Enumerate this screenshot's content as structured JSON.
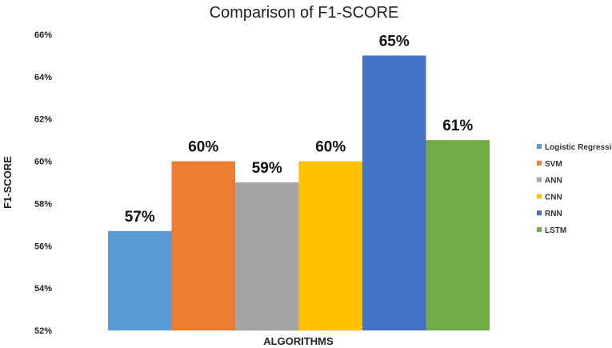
{
  "chart_data": {
    "type": "bar",
    "title": "Comparison of F1-SCORE",
    "xlabel": "ALGORITHMS",
    "ylabel": "F1-SCORE",
    "ylim": [
      52,
      66
    ],
    "yticks": [
      "52%",
      "54%",
      "56%",
      "58%",
      "60%",
      "62%",
      "64%",
      "66%"
    ],
    "legend_position": "right",
    "series": [
      {
        "name": "Logistic Regression",
        "value": 56.7,
        "label": "57%",
        "color": "#5b9bd5"
      },
      {
        "name": "SVM",
        "value": 60,
        "label": "60%",
        "color": "#ed7d31"
      },
      {
        "name": "ANN",
        "value": 59,
        "label": "59%",
        "color": "#a5a5a5"
      },
      {
        "name": "CNN",
        "value": 60,
        "label": "60%",
        "color": "#ffc000"
      },
      {
        "name": "RNN",
        "value": 65,
        "label": "65%",
        "color": "#4472c4"
      },
      {
        "name": "LSTM",
        "value": 61,
        "label": "61%",
        "color": "#70ad47"
      }
    ]
  }
}
